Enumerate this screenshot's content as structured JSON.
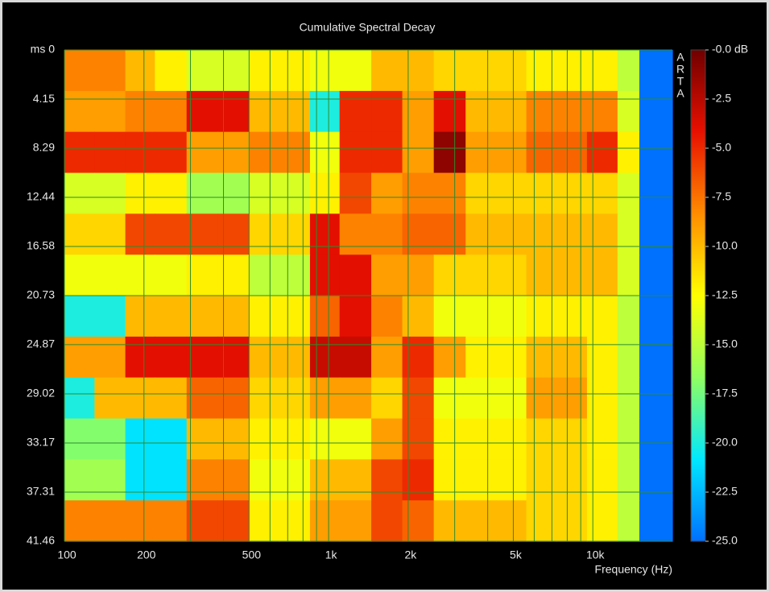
{
  "chart_data": {
    "type": "heatmap",
    "title": "Cumulative Spectral Decay",
    "xlabel": "Frequency (Hz)",
    "watermark": "ARTA",
    "xscale": "log",
    "xlim": [
      100,
      20000
    ],
    "xticks": [
      100,
      200,
      500,
      {
        "value": 1000,
        "label": "1k"
      },
      {
        "value": 2000,
        "label": "2k"
      },
      {
        "value": 5000,
        "label": "5k"
      },
      {
        "value": 10000,
        "label": "10k"
      }
    ],
    "x_minor_ticks": [
      300,
      400,
      600,
      700,
      800,
      900,
      3000,
      4000,
      6000,
      7000,
      8000,
      9000
    ],
    "ylim": [
      0,
      41.46
    ],
    "y_inverted": true,
    "yticks": [
      {
        "value": 0,
        "label": "ms 0"
      },
      4.15,
      8.29,
      12.44,
      16.58,
      20.73,
      24.87,
      29.02,
      33.17,
      37.31,
      41.46
    ],
    "grid": true,
    "grid_color": "#2e8b2e",
    "x_edges": [
      100,
      130,
      170,
      220,
      290,
      380,
      500,
      650,
      850,
      1100,
      1450,
      1900,
      2500,
      3300,
      4300,
      5600,
      7300,
      9500,
      12400,
      15000,
      20000
    ],
    "y_edges": [
      0,
      3.46,
      6.91,
      10.37,
      13.82,
      17.28,
      20.73,
      24.19,
      27.64,
      31.1,
      34.55,
      38.01,
      41.46
    ],
    "z": [
      [
        -8,
        -8,
        -10,
        -12,
        -14,
        -14,
        -12,
        -12,
        -13,
        -13,
        -10,
        -10,
        -11,
        -11,
        -11,
        -12,
        -12,
        -12,
        -15,
        -25
      ],
      [
        -9,
        -9,
        -8,
        -8,
        -4,
        -4,
        -10,
        -10,
        -20,
        -5,
        -5,
        -9,
        -4,
        -10,
        -10,
        -8,
        -8,
        -8,
        -14,
        -25
      ],
      [
        -5,
        -5,
        -5,
        -5,
        -9,
        -9,
        -8,
        -8,
        -13,
        -5,
        -5,
        -9,
        -1,
        -9,
        -9,
        -7,
        -7,
        -5,
        -12,
        -25
      ],
      [
        -14,
        -14,
        -12,
        -12,
        -16,
        -16,
        -14,
        -14,
        -12,
        -6,
        -9,
        -8,
        -8,
        -11,
        -11,
        -11,
        -11,
        -11,
        -14,
        -25
      ],
      [
        -11,
        -11,
        -6,
        -6,
        -6,
        -6,
        -11,
        -11,
        -4,
        -8,
        -8,
        -7,
        -7,
        -10,
        -10,
        -10,
        -10,
        -10,
        -14,
        -25
      ],
      [
        -13,
        -13,
        -13,
        -13,
        -12,
        -12,
        -15,
        -15,
        -4,
        -4,
        -9,
        -9,
        -11,
        -11,
        -11,
        -10,
        -10,
        -10,
        -14,
        -25
      ],
      [
        -20,
        -20,
        -10,
        -10,
        -10,
        -10,
        -12,
        -12,
        -7,
        -4,
        -8,
        -10,
        -13,
        -13,
        -13,
        -12,
        -12,
        -12,
        -15,
        -25
      ],
      [
        -9,
        -9,
        -4,
        -4,
        -4,
        -4,
        -10,
        -10,
        -3,
        -3,
        -9,
        -5,
        -9,
        -12,
        -12,
        -10,
        -10,
        -12,
        -15,
        -25
      ],
      [
        -20,
        -10,
        -10,
        -10,
        -7,
        -7,
        -11,
        -11,
        -9,
        -9,
        -11,
        -6,
        -13,
        -13,
        -13,
        -9,
        -9,
        -12,
        -15,
        -25
      ],
      [
        -17,
        -17,
        -21,
        -21,
        -10,
        -10,
        -12,
        -12,
        -13,
        -13,
        -9,
        -6,
        -12,
        -12,
        -12,
        -11,
        -11,
        -12,
        -15,
        -25
      ],
      [
        -16,
        -16,
        -21,
        -21,
        -8,
        -8,
        -13,
        -13,
        -10,
        -10,
        -6,
        -5,
        -12,
        -12,
        -12,
        -11,
        -11,
        -12,
        -15,
        -25
      ],
      [
        -8,
        -8,
        -8,
        -8,
        -6,
        -6,
        -12,
        -12,
        -9,
        -9,
        -6,
        -7,
        -10,
        -10,
        -10,
        -11,
        -11,
        -12,
        -15,
        -25
      ]
    ],
    "zlim": [
      -25,
      0
    ],
    "colormap": [
      "#0070ff",
      "#00e8ff",
      "#90ff60",
      "#ffff00",
      "#ff8c00",
      "#e81000",
      "#700000"
    ],
    "colorbar_ticks": [
      {
        "value": 0,
        "label": "-0.0 dB"
      },
      -2.5,
      {
        "value": -5,
        "label": "-5.0"
      },
      -7.5,
      {
        "value": -10,
        "label": "-10.0"
      },
      -12.5,
      {
        "value": -15,
        "label": "-15.0"
      },
      -17.5,
      {
        "value": -20,
        "label": "-20.0"
      },
      -22.5,
      {
        "value": -25,
        "label": "-25.0"
      }
    ]
  }
}
